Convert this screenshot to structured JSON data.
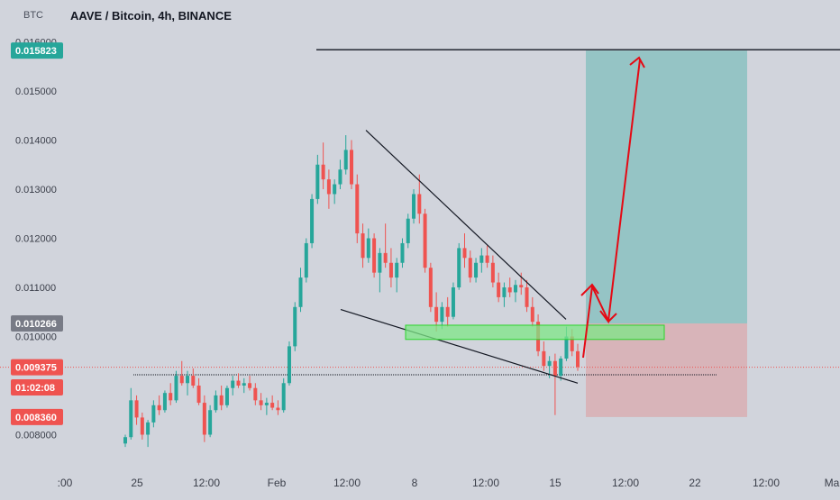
{
  "chart_title": "AAVE / Bitcoin, 4h, BINANCE",
  "y_unit": "BTC",
  "chart_data": {
    "type": "candlestick",
    "title": "AAVE / Bitcoin, 4h, BINANCE",
    "ylabel": "BTC",
    "ylim": [
      0.0074,
      0.0165
    ],
    "y_ticks": [
      "0.016000",
      "0.015000",
      "0.014000",
      "0.013000",
      "0.012000",
      "0.011000",
      "0.010000",
      "0.008000"
    ],
    "x_ticks": [
      ":00",
      "25",
      "12:00",
      "Feb",
      "12:00",
      "8",
      "12:00",
      "15",
      "12:00",
      "22",
      "12:00",
      "Mar"
    ],
    "price_tags": [
      {
        "label": "0.015823",
        "value": 0.015823,
        "color": "#26a69a"
      },
      {
        "label": "0.010266",
        "value": 0.010266,
        "color": "#787b86"
      },
      {
        "label": "0.009375",
        "value": 0.009375,
        "color": "#ef5350"
      },
      {
        "label": "01:02:08",
        "value": null,
        "color": "#ef5350"
      },
      {
        "label": "0.008360",
        "value": 0.00836,
        "color": "#ef5350"
      }
    ],
    "annotations": {
      "resistance_level": 0.015823,
      "entry_level": 0.010266,
      "stop_level": 0.00836,
      "last_price": 0.009375,
      "support_zone": [
        0.00994,
        0.01023
      ],
      "wedge_upper": [
        [
          0.0142
        ],
        [
          0.01035
        ]
      ],
      "wedge_lower": [
        [
          0.01055
        ],
        [
          0.00905
        ]
      ]
    },
    "up_color": "#26a69a",
    "down_color": "#ef5350",
    "candles": [
      [
        0.00782,
        0.008,
        0.00775,
        0.00795
      ],
      [
        0.00795,
        0.00895,
        0.0079,
        0.0087
      ],
      [
        0.0087,
        0.0088,
        0.0082,
        0.00835
      ],
      [
        0.00835,
        0.00845,
        0.0079,
        0.008
      ],
      [
        0.008,
        0.0083,
        0.00775,
        0.00825
      ],
      [
        0.00825,
        0.0087,
        0.00815,
        0.0086
      ],
      [
        0.0086,
        0.0088,
        0.0084,
        0.0085
      ],
      [
        0.0085,
        0.0089,
        0.00845,
        0.00885
      ],
      [
        0.00885,
        0.00905,
        0.0086,
        0.0087
      ],
      [
        0.0087,
        0.0093,
        0.00865,
        0.0092
      ],
      [
        0.0092,
        0.0095,
        0.009,
        0.00905
      ],
      [
        0.00905,
        0.0093,
        0.0088,
        0.0092
      ],
      [
        0.0092,
        0.00935,
        0.00895,
        0.009
      ],
      [
        0.009,
        0.00915,
        0.0086,
        0.00865
      ],
      [
        0.00865,
        0.0088,
        0.00785,
        0.008
      ],
      [
        0.008,
        0.0086,
        0.00795,
        0.0085
      ],
      [
        0.0085,
        0.0089,
        0.00845,
        0.0088
      ],
      [
        0.0088,
        0.009,
        0.0085,
        0.0086
      ],
      [
        0.0086,
        0.009,
        0.00855,
        0.00895
      ],
      [
        0.00895,
        0.0092,
        0.0088,
        0.0091
      ],
      [
        0.0091,
        0.00925,
        0.00895,
        0.009
      ],
      [
        0.009,
        0.00915,
        0.00885,
        0.00905
      ],
      [
        0.00905,
        0.0092,
        0.0089,
        0.00895
      ],
      [
        0.00895,
        0.00905,
        0.0086,
        0.0087
      ],
      [
        0.0087,
        0.00885,
        0.0085,
        0.0086
      ],
      [
        0.0086,
        0.00875,
        0.0084,
        0.00865
      ],
      [
        0.00865,
        0.0088,
        0.0085,
        0.00855
      ],
      [
        0.00855,
        0.0087,
        0.0084,
        0.0085
      ],
      [
        0.0085,
        0.00915,
        0.00845,
        0.00905
      ],
      [
        0.00905,
        0.0099,
        0.009,
        0.0098
      ],
      [
        0.0098,
        0.0107,
        0.0097,
        0.0106
      ],
      [
        0.0106,
        0.0114,
        0.0105,
        0.0112
      ],
      [
        0.0112,
        0.012,
        0.0111,
        0.0119
      ],
      [
        0.0119,
        0.0129,
        0.0118,
        0.0128
      ],
      [
        0.0128,
        0.0137,
        0.0127,
        0.0135
      ],
      [
        0.0135,
        0.01395,
        0.013,
        0.0132
      ],
      [
        0.0132,
        0.0134,
        0.0126,
        0.0129
      ],
      [
        0.0129,
        0.0132,
        0.0127,
        0.0131
      ],
      [
        0.0131,
        0.0136,
        0.013,
        0.0134
      ],
      [
        0.0134,
        0.0141,
        0.0133,
        0.0138
      ],
      [
        0.0138,
        0.014,
        0.013,
        0.0131
      ],
      [
        0.0131,
        0.0133,
        0.0119,
        0.0121
      ],
      [
        0.0121,
        0.0123,
        0.0114,
        0.0116
      ],
      [
        0.0116,
        0.0122,
        0.0115,
        0.012
      ],
      [
        0.012,
        0.0121,
        0.0112,
        0.0113
      ],
      [
        0.0113,
        0.0118,
        0.0109,
        0.0117
      ],
      [
        0.0117,
        0.0123,
        0.0114,
        0.0115
      ],
      [
        0.0115,
        0.0118,
        0.011,
        0.0112
      ],
      [
        0.0112,
        0.0116,
        0.0109,
        0.0115
      ],
      [
        0.0115,
        0.012,
        0.0114,
        0.0119
      ],
      [
        0.0119,
        0.0125,
        0.0118,
        0.0124
      ],
      [
        0.0124,
        0.013,
        0.0123,
        0.0129
      ],
      [
        0.0129,
        0.0133,
        0.0123,
        0.0125
      ],
      [
        0.0125,
        0.0126,
        0.0113,
        0.0114
      ],
      [
        0.0114,
        0.0115,
        0.0105,
        0.0106
      ],
      [
        0.0106,
        0.0109,
        0.0101,
        0.0103
      ],
      [
        0.0103,
        0.0107,
        0.01015,
        0.0106
      ],
      [
        0.0106,
        0.0108,
        0.0102,
        0.0104
      ],
      [
        0.0104,
        0.0111,
        0.01035,
        0.011
      ],
      [
        0.011,
        0.0119,
        0.01095,
        0.0118
      ],
      [
        0.0118,
        0.0121,
        0.0114,
        0.0116
      ],
      [
        0.0116,
        0.01175,
        0.0111,
        0.0112
      ],
      [
        0.0112,
        0.0116,
        0.0111,
        0.0115
      ],
      [
        0.0115,
        0.0118,
        0.0113,
        0.01165
      ],
      [
        0.01165,
        0.01185,
        0.0114,
        0.0115
      ],
      [
        0.0115,
        0.01165,
        0.011,
        0.0111
      ],
      [
        0.0111,
        0.0113,
        0.0107,
        0.0108
      ],
      [
        0.0108,
        0.0111,
        0.0106,
        0.011
      ],
      [
        0.011,
        0.0112,
        0.0108,
        0.0109
      ],
      [
        0.0109,
        0.01115,
        0.0107,
        0.01105
      ],
      [
        0.01105,
        0.0113,
        0.01085,
        0.011
      ],
      [
        0.011,
        0.01115,
        0.0105,
        0.0106
      ],
      [
        0.0106,
        0.0108,
        0.0102,
        0.0103
      ],
      [
        0.0103,
        0.01045,
        0.0096,
        0.0097
      ],
      [
        0.0097,
        0.0099,
        0.0093,
        0.0094
      ],
      [
        0.0094,
        0.0096,
        0.00915,
        0.0095
      ],
      [
        0.0095,
        0.00965,
        0.0084,
        0.0092
      ],
      [
        0.0092,
        0.0096,
        0.0091,
        0.00955
      ],
      [
        0.00955,
        0.0102,
        0.0095,
        0.01
      ],
      [
        0.01,
        0.01015,
        0.0096,
        0.0097
      ],
      [
        0.0097,
        0.00985,
        0.0093,
        0.00938
      ]
    ]
  }
}
